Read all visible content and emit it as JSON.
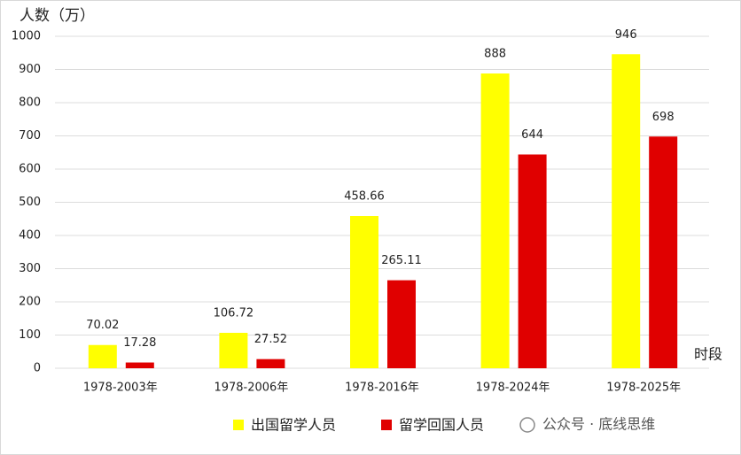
{
  "chart_data": {
    "type": "bar",
    "y_label": "人数（万）",
    "x_label": "时段",
    "annotation": "公众号 · 底线思维",
    "categories": [
      "1978-2003年",
      "1978-2006年",
      "1978-2016年",
      "1978-2024年",
      "1978-2025年"
    ],
    "series": [
      {
        "name": "出国留学人员",
        "color": "#ffff00",
        "values": [
          70.02,
          106.72,
          458.66,
          888,
          946
        ]
      },
      {
        "name": "留学回国人员",
        "color": "#e00000",
        "values": [
          17.28,
          27.52,
          265.11,
          644,
          698
        ]
      }
    ],
    "ylim": [
      0,
      1000
    ],
    "yticks": [
      0,
      100,
      200,
      300,
      400,
      500,
      600,
      700,
      800,
      900,
      1000
    ],
    "grid": true,
    "legend": "bottom"
  }
}
